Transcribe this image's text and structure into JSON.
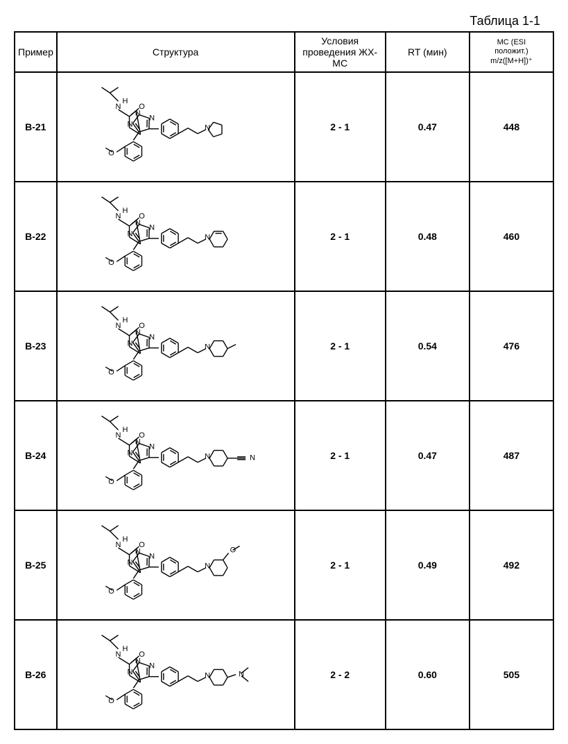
{
  "caption": "Таблица 1-1",
  "headers": {
    "example": "Пример",
    "structure": "Структура",
    "conditions": "Условия проведения ЖХ-МС",
    "rt": "RT (мин)",
    "mz_line1": "МС (ESI",
    "mz_line2": "положит.)",
    "mz_line3": "m/z([M+H])⁺"
  },
  "rows": [
    {
      "id": "B-21",
      "cond": "2 - 1",
      "rt": "0.47",
      "mz": "448",
      "struct_variant": "pyrrolidine"
    },
    {
      "id": "B-22",
      "cond": "2 - 1",
      "rt": "0.48",
      "mz": "460",
      "struct_variant": "dihydropyridine"
    },
    {
      "id": "B-23",
      "cond": "2 - 1",
      "rt": "0.54",
      "mz": "476",
      "struct_variant": "methylpiperidine"
    },
    {
      "id": "B-24",
      "cond": "2 - 1",
      "rt": "0.47",
      "mz": "487",
      "struct_variant": "cyanopiperidine"
    },
    {
      "id": "B-25",
      "cond": "2 - 1",
      "rt": "0.49",
      "mz": "492",
      "struct_variant": "methoxypiperidine"
    },
    {
      "id": "B-26",
      "cond": "2 - 2",
      "rt": "0.60",
      "mz": "505",
      "struct_variant": "dimethylaminopiperidine"
    }
  ],
  "style": {
    "stroke": "#000000",
    "stroke_width": 1.4,
    "font_family": "Arial",
    "atom_font_size": 11
  }
}
